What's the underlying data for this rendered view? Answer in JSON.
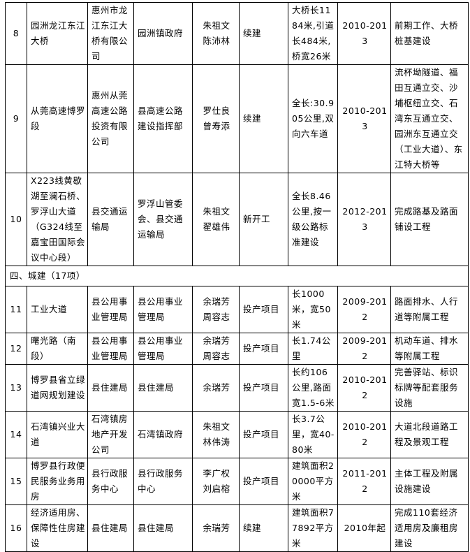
{
  "rows": [
    {
      "no": "8",
      "name": "园洲龙江东江大桥",
      "owner": "惠州市龙江东江大桥有限公司",
      "supervisor": "园洲镇政府",
      "leaders": "朱祖文\n陈沛林",
      "status": "续建",
      "scale": "大桥长1184米,引道长484米,桥宽26米",
      "period": "2010-2013",
      "content": "前期工作、大桥桩基建设"
    },
    {
      "no": "9",
      "name": "从莞高速博罗段",
      "owner": "惠州从莞高速公路投资有限公司",
      "supervisor": "县高速公路建设指挥部",
      "leaders": "罗仕良\n曾寿添",
      "status": "续建",
      "scale": "全长:30.905公里,双向六车道",
      "period": "2010-2013",
      "content": "流杯坳隧道、福田互通立交、沙埔枢纽立交、石湾东互通立交、园洲东互通立交（工业大道）、东江特大桥等"
    },
    {
      "no": "10",
      "name": "X223线黄歇湖至澜石桥、罗浮山大道（G324线至嘉宝田国际会议中心段）",
      "owner": "县交通运输局",
      "supervisor": "罗浮山管委会、县交通运输局",
      "leaders": "朱祖文\n翟雄伟",
      "status": "新开工",
      "scale": "全长8.46公里,按一级公路标准建设",
      "period": "2012-2013",
      "content": "完成路基及路面铺设工程"
    }
  ],
  "section": {
    "title": "四、城建（17项）"
  },
  "rows2": [
    {
      "no": "11",
      "name": "工业大道",
      "owner": "县公用事业管理局",
      "supervisor": "县公用事业管理局",
      "leaders": "余瑞芳\n周容志",
      "status": "投产项目",
      "scale": "长1000米，宽50米",
      "period": "2009-2012",
      "content": "路面排水、人行道等附属工程"
    },
    {
      "no": "12",
      "name": "曙光路（南段）",
      "owner": "县公用事业管理局",
      "supervisor": "县公用事业管理局",
      "leaders": "余瑞芳\n周容志",
      "status": "投产项目",
      "scale": "长1.74公里",
      "period": "2009-2012",
      "content": "机动车道、排水等附属工程"
    },
    {
      "no": "13",
      "name": "博罗县省立绿道网规划建设",
      "owner": "县住建局",
      "supervisor": "县住建局",
      "leaders": "余瑞芳",
      "status": "投产项目",
      "scale": "长约106公里,路面宽1.5-6米",
      "period": "2010-2012",
      "content": "完善驿站、标识标牌等配套服务设施"
    },
    {
      "no": "14",
      "name": "石湾镇兴业大道",
      "owner": "石湾镇房地产开发公司",
      "supervisor": "石湾镇政府",
      "leaders": "朱祖文\n林伟涛",
      "status": "投产项目",
      "scale": "长3.7公里，宽40-80米",
      "period": "2010-2012",
      "content": "大道北段道路工程及景观工程"
    },
    {
      "no": "15",
      "name": "博罗县行政便民服务业务用房",
      "owner": "县行政服务中心",
      "supervisor": "县行政服务中心",
      "leaders": "李广权\n刘启榕",
      "status": "投产项目",
      "scale": "建筑面积20000平方米",
      "period": "2011-2012",
      "content": "主体工程及附属设施建设"
    },
    {
      "no": "16",
      "name": "经济适用房、保障性住房建设",
      "owner": "县住建局",
      "supervisor": "县住建局",
      "leaders": "余瑞芳",
      "status": "续建",
      "scale": "建筑面积77892平方米",
      "period": "2010年起",
      "content": "完成110套经济适用房及廉租房建设"
    }
  ]
}
